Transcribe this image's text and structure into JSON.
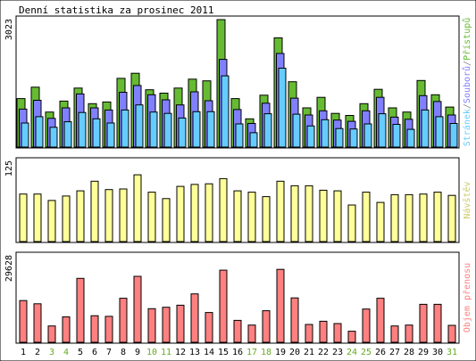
{
  "chart_data": [
    {
      "type": "bar",
      "title": "Denní statistika za prosinec 2011",
      "ymax_label": "3023",
      "ylim": [
        0,
        3023
      ],
      "categories": [
        "1",
        "2",
        "3",
        "4",
        "5",
        "6",
        "7",
        "8",
        "9",
        "10",
        "11",
        "12",
        "13",
        "14",
        "15",
        "16",
        "17",
        "18",
        "19",
        "20",
        "21",
        "22",
        "23",
        "24",
        "25",
        "26",
        "27",
        "28",
        "29",
        "30",
        "31"
      ],
      "weekend_days": [
        "3",
        "4",
        "10",
        "11",
        "17",
        "18",
        "24",
        "25",
        "31"
      ],
      "side_label": {
        "parts": [
          "Stránek",
          "/",
          "Souborů",
          "/",
          "Přístupů"
        ]
      },
      "series": [
        {
          "name": "Přístupů",
          "color": "#66bb33",
          "values": [
            1150,
            1420,
            830,
            1090,
            1400,
            1030,
            1070,
            1630,
            1750,
            1360,
            1280,
            1400,
            1610,
            1570,
            3023,
            1150,
            670,
            1230,
            2590,
            1550,
            930,
            1180,
            800,
            750,
            1030,
            1370,
            930,
            830,
            1580,
            1240,
            950
          ]
        },
        {
          "name": "Souborů",
          "color": "#8080ff",
          "values": [
            900,
            1110,
            680,
            930,
            1260,
            930,
            880,
            1300,
            1460,
            1240,
            1120,
            1000,
            1310,
            1100,
            2080,
            890,
            560,
            1040,
            2220,
            1160,
            760,
            860,
            640,
            610,
            860,
            1180,
            710,
            660,
            1220,
            1080,
            760
          ]
        },
        {
          "name": "Stránek",
          "color": "#66ccff",
          "values": [
            570,
            720,
            470,
            600,
            820,
            670,
            570,
            880,
            1000,
            830,
            800,
            690,
            840,
            840,
            1690,
            550,
            340,
            790,
            1870,
            780,
            500,
            650,
            440,
            430,
            550,
            790,
            540,
            420,
            880,
            720,
            560
          ]
        }
      ]
    },
    {
      "type": "bar",
      "ymax_label": "125",
      "ylim": [
        0,
        125
      ],
      "categories": [
        "1",
        "2",
        "3",
        "4",
        "5",
        "6",
        "7",
        "8",
        "9",
        "10",
        "11",
        "12",
        "13",
        "14",
        "15",
        "16",
        "17",
        "18",
        "19",
        "20",
        "21",
        "22",
        "23",
        "24",
        "25",
        "26",
        "27",
        "28",
        "29",
        "30",
        "31"
      ],
      "side_label": {
        "parts": [
          "Návštěv"
        ]
      },
      "series": [
        {
          "name": "Návštěv",
          "color": "#ffff99",
          "values": [
            74,
            74,
            64,
            71,
            79,
            94,
            81,
            82,
            104,
            77,
            67,
            86,
            89,
            90,
            98,
            79,
            77,
            70,
            94,
            87,
            87,
            80,
            79,
            57,
            77,
            61,
            73,
            73,
            74,
            77,
            72
          ]
        }
      ]
    },
    {
      "type": "bar",
      "ymax_label": "29628",
      "ylim": [
        0,
        29628
      ],
      "categories": [
        "1",
        "2",
        "3",
        "4",
        "5",
        "6",
        "7",
        "8",
        "9",
        "10",
        "11",
        "12",
        "13",
        "14",
        "15",
        "16",
        "17",
        "18",
        "19",
        "20",
        "21",
        "22",
        "23",
        "24",
        "25",
        "26",
        "27",
        "28",
        "29",
        "30",
        "31"
      ],
      "side_label": {
        "parts": [
          "Objem přenosu"
        ]
      },
      "series": [
        {
          "name": "Objem přenosu",
          "color": "#ff8080",
          "values": [
            14300,
            13200,
            5600,
            8700,
            21900,
            9100,
            8900,
            15100,
            22600,
            11500,
            12000,
            12700,
            16600,
            10200,
            24700,
            7500,
            5900,
            10800,
            25000,
            15200,
            6100,
            7200,
            6400,
            3800,
            11400,
            15100,
            5600,
            5900,
            13000,
            13000,
            5800
          ]
        }
      ]
    }
  ]
}
